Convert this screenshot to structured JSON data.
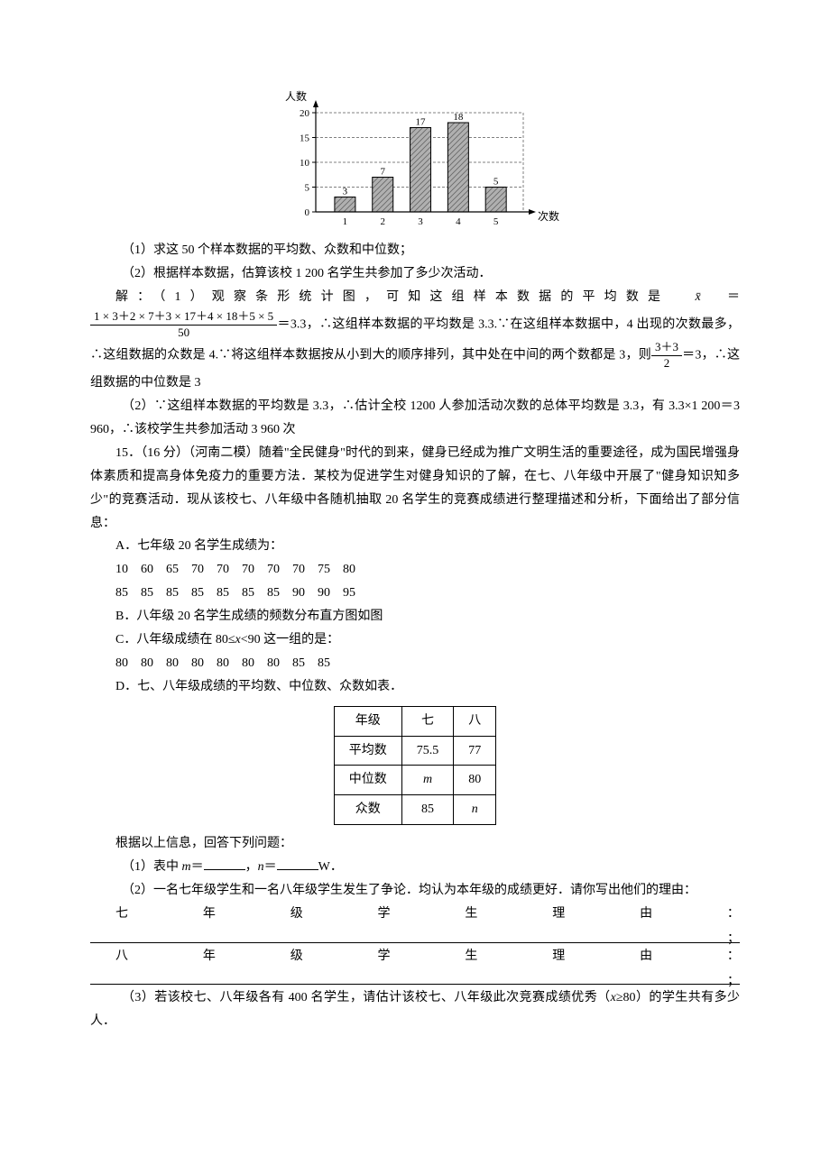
{
  "bar_chart": {
    "type": "bar",
    "y_axis_label": "人数",
    "x_axis_label": "次数",
    "categories": [
      "1",
      "2",
      "3",
      "4",
      "5"
    ],
    "values": [
      3,
      7,
      17,
      18,
      5
    ],
    "y_ticks": [
      0,
      5,
      10,
      15,
      20
    ],
    "ylim": [
      0,
      20
    ],
    "bar_fill": "#b0b0b0",
    "bar_hatch": "diagonal",
    "bar_stroke": "#000000",
    "grid_dash": "3,2",
    "grid_color": "#808080",
    "axis_color": "#000000",
    "background": "#ffffff",
    "label_fontsize": 11
  },
  "q14": {
    "line1": "（1）求这 50 个样本数据的平均数、众数和中位数；",
    "line2": "（2）根据样本数据，估算该校 1 200 名学生共参加了多少次活动．",
    "sol_prefix": "解：（1）观察条形统计图，可知这组样本数据的平均数是",
    "xbar": "x̄",
    "eq": "＝",
    "frac_num": "1 × 3＋2 × 7＋3 × 17＋4 × 18＋5 × 5",
    "frac_den": "50",
    "after_frac": "＝3.3，∴这组样本数据的平均数是 3.3.∵在这组样本数据中，4 出现的次数最多，∴这组数据的众数是 4.∵将这组样本数据按从小到大的顺序排列，其中处在中间的两个数都是 3，则",
    "small_frac_num": "3＋3",
    "small_frac_den": "2",
    "after_small_frac": "＝3，∴这组数据的中位数是 3",
    "part2": "（2）∵这组样本数据的平均数是 3.3，∴估计全校 1200 人参加活动次数的总体平均数是 3.3，有 3.3×1 200＝3 960，∴该校学生共参加活动 3 960 次"
  },
  "q15": {
    "stem1": "15．（16 分）（河南二模）随着\"全民健身\"时代的到来，健身已经成为推广文明生活的重要途径，成为国民增强身体素质和提高身体免疫力的重要方法．某校为促进学生对健身知识的了解，在七、八年级中开展了\"健身知识知多少\"的竞赛活动．现从该校七、八年级中各随机抽取 20 名学生的竞赛成绩进行整理描述和分析，下面给出了部分信息：",
    "A_label": "A．七年级 20 名学生成绩为：",
    "A_row1": "10　60　65　70　70　70　70　70　75　80",
    "A_row2": "85　85　85　85　85　85　85　90　90　95",
    "B_label": "B．八年级 20 名学生成绩的频数分布直方图如图",
    "C_label": "C．八年级成绩在 80≤x<90 这一组的是：",
    "C_row": "80　80　80　80　80　80　80　85　85",
    "D_label": "D．七、八年级成绩的平均数、中位数、众数如表．",
    "table": {
      "headers": [
        "年级",
        "七",
        "八"
      ],
      "rows": [
        [
          "平均数",
          "75.5",
          "77"
        ],
        [
          "中位数",
          "m",
          "80"
        ],
        [
          "众数",
          "85",
          "n"
        ]
      ]
    },
    "after_table": "根据以上信息，回答下列问题：",
    "sub1_a": "（1）表中 ",
    "sub1_m": "m",
    "sub1_b": "＝",
    "sub1_c": "，",
    "sub1_n": "n",
    "sub1_d": "＝",
    "sub1_e": "W．",
    "sub2": "（2）一名七年级学生和一名八年级学生发生了争论．均认为本年级的成绩更好．请你写出他们的理由：",
    "r7_label": "七年级学生理由：",
    "r8_label": "八年级学生理由：",
    "sub3": "（3）若该校七、八年级各有 400 名学生，请估计该校七、八年级此次竞赛成绩优秀（x≥80）的学生共有多少人．"
  }
}
